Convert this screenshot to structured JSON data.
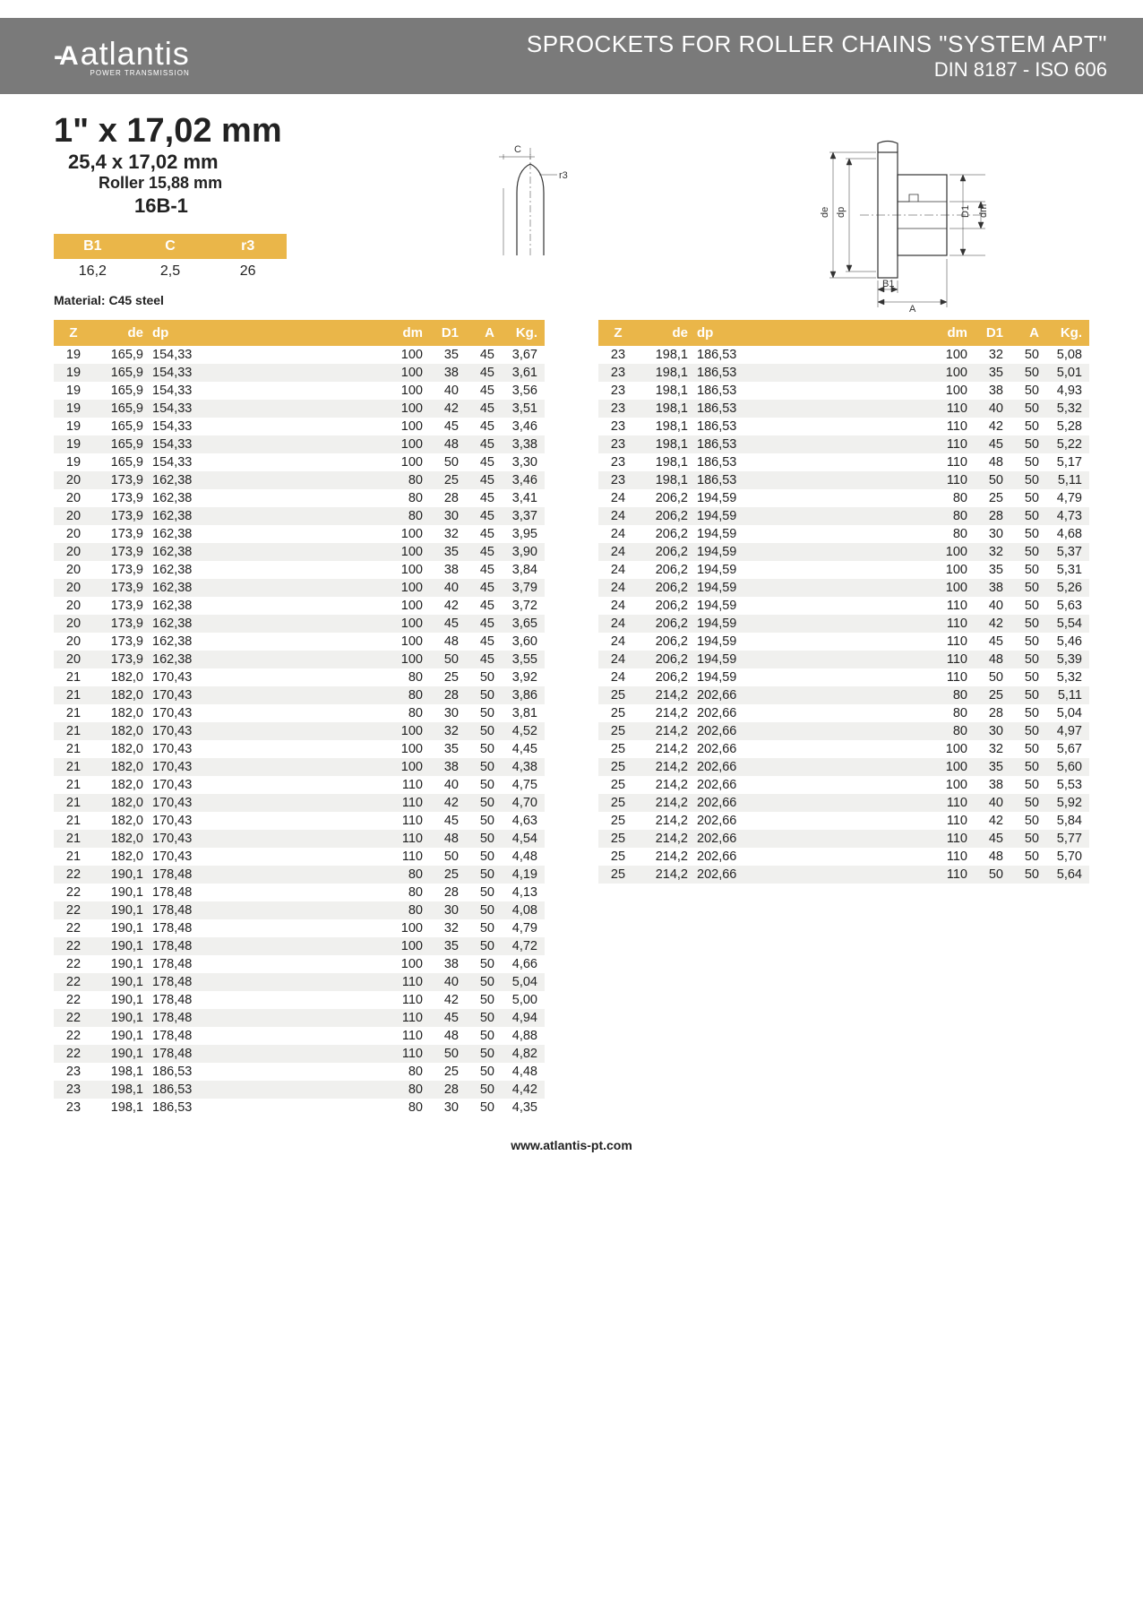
{
  "header": {
    "logo_text": "atlantis",
    "logo_sub": "POWER TRANSMISSION",
    "title": "SPROCKETS FOR ROLLER CHAINS \"SYSTEM APT\"",
    "subtitle": "DIN 8187 - ISO 606"
  },
  "spec": {
    "main": "1\" x 17,02 mm",
    "line2": "25,4 x 17,02 mm",
    "line3": "Roller 15,88 mm",
    "line4": "16B-1",
    "mini_headers": [
      "B1",
      "C",
      "r3"
    ],
    "mini_values": [
      "16,2",
      "2,5",
      "26"
    ],
    "material": "Material: C45 steel"
  },
  "diagrams": {
    "left_labels": {
      "C": "C",
      "r3": "r3"
    },
    "right_labels": {
      "de": "de",
      "dp": "dp",
      "D1": "D1",
      "dm": "dm",
      "B1": "B1",
      "A": "A"
    }
  },
  "table": {
    "headers": {
      "Z": "Z",
      "de": "de",
      "dp": "dp",
      "dm": "dm",
      "D1": "D1",
      "A": "A",
      "Kg": "Kg."
    },
    "left_rows": [
      [
        "19",
        "165,9",
        "154,33",
        "100",
        "35",
        "45",
        "3,67"
      ],
      [
        "19",
        "165,9",
        "154,33",
        "100",
        "38",
        "45",
        "3,61"
      ],
      [
        "19",
        "165,9",
        "154,33",
        "100",
        "40",
        "45",
        "3,56"
      ],
      [
        "19",
        "165,9",
        "154,33",
        "100",
        "42",
        "45",
        "3,51"
      ],
      [
        "19",
        "165,9",
        "154,33",
        "100",
        "45",
        "45",
        "3,46"
      ],
      [
        "19",
        "165,9",
        "154,33",
        "100",
        "48",
        "45",
        "3,38"
      ],
      [
        "19",
        "165,9",
        "154,33",
        "100",
        "50",
        "45",
        "3,30"
      ],
      [
        "20",
        "173,9",
        "162,38",
        "80",
        "25",
        "45",
        "3,46"
      ],
      [
        "20",
        "173,9",
        "162,38",
        "80",
        "28",
        "45",
        "3,41"
      ],
      [
        "20",
        "173,9",
        "162,38",
        "80",
        "30",
        "45",
        "3,37"
      ],
      [
        "20",
        "173,9",
        "162,38",
        "100",
        "32",
        "45",
        "3,95"
      ],
      [
        "20",
        "173,9",
        "162,38",
        "100",
        "35",
        "45",
        "3,90"
      ],
      [
        "20",
        "173,9",
        "162,38",
        "100",
        "38",
        "45",
        "3,84"
      ],
      [
        "20",
        "173,9",
        "162,38",
        "100",
        "40",
        "45",
        "3,79"
      ],
      [
        "20",
        "173,9",
        "162,38",
        "100",
        "42",
        "45",
        "3,72"
      ],
      [
        "20",
        "173,9",
        "162,38",
        "100",
        "45",
        "45",
        "3,65"
      ],
      [
        "20",
        "173,9",
        "162,38",
        "100",
        "48",
        "45",
        "3,60"
      ],
      [
        "20",
        "173,9",
        "162,38",
        "100",
        "50",
        "45",
        "3,55"
      ],
      [
        "21",
        "182,0",
        "170,43",
        "80",
        "25",
        "50",
        "3,92"
      ],
      [
        "21",
        "182,0",
        "170,43",
        "80",
        "28",
        "50",
        "3,86"
      ],
      [
        "21",
        "182,0",
        "170,43",
        "80",
        "30",
        "50",
        "3,81"
      ],
      [
        "21",
        "182,0",
        "170,43",
        "100",
        "32",
        "50",
        "4,52"
      ],
      [
        "21",
        "182,0",
        "170,43",
        "100",
        "35",
        "50",
        "4,45"
      ],
      [
        "21",
        "182,0",
        "170,43",
        "100",
        "38",
        "50",
        "4,38"
      ],
      [
        "21",
        "182,0",
        "170,43",
        "110",
        "40",
        "50",
        "4,75"
      ],
      [
        "21",
        "182,0",
        "170,43",
        "110",
        "42",
        "50",
        "4,70"
      ],
      [
        "21",
        "182,0",
        "170,43",
        "110",
        "45",
        "50",
        "4,63"
      ],
      [
        "21",
        "182,0",
        "170,43",
        "110",
        "48",
        "50",
        "4,54"
      ],
      [
        "21",
        "182,0",
        "170,43",
        "110",
        "50",
        "50",
        "4,48"
      ],
      [
        "22",
        "190,1",
        "178,48",
        "80",
        "25",
        "50",
        "4,19"
      ],
      [
        "22",
        "190,1",
        "178,48",
        "80",
        "28",
        "50",
        "4,13"
      ],
      [
        "22",
        "190,1",
        "178,48",
        "80",
        "30",
        "50",
        "4,08"
      ],
      [
        "22",
        "190,1",
        "178,48",
        "100",
        "32",
        "50",
        "4,79"
      ],
      [
        "22",
        "190,1",
        "178,48",
        "100",
        "35",
        "50",
        "4,72"
      ],
      [
        "22",
        "190,1",
        "178,48",
        "100",
        "38",
        "50",
        "4,66"
      ],
      [
        "22",
        "190,1",
        "178,48",
        "110",
        "40",
        "50",
        "5,04"
      ],
      [
        "22",
        "190,1",
        "178,48",
        "110",
        "42",
        "50",
        "5,00"
      ],
      [
        "22",
        "190,1",
        "178,48",
        "110",
        "45",
        "50",
        "4,94"
      ],
      [
        "22",
        "190,1",
        "178,48",
        "110",
        "48",
        "50",
        "4,88"
      ],
      [
        "22",
        "190,1",
        "178,48",
        "110",
        "50",
        "50",
        "4,82"
      ],
      [
        "23",
        "198,1",
        "186,53",
        "80",
        "25",
        "50",
        "4,48"
      ],
      [
        "23",
        "198,1",
        "186,53",
        "80",
        "28",
        "50",
        "4,42"
      ],
      [
        "23",
        "198,1",
        "186,53",
        "80",
        "30",
        "50",
        "4,35"
      ]
    ],
    "right_rows": [
      [
        "23",
        "198,1",
        "186,53",
        "100",
        "32",
        "50",
        "5,08"
      ],
      [
        "23",
        "198,1",
        "186,53",
        "100",
        "35",
        "50",
        "5,01"
      ],
      [
        "23",
        "198,1",
        "186,53",
        "100",
        "38",
        "50",
        "4,93"
      ],
      [
        "23",
        "198,1",
        "186,53",
        "110",
        "40",
        "50",
        "5,32"
      ],
      [
        "23",
        "198,1",
        "186,53",
        "110",
        "42",
        "50",
        "5,28"
      ],
      [
        "23",
        "198,1",
        "186,53",
        "110",
        "45",
        "50",
        "5,22"
      ],
      [
        "23",
        "198,1",
        "186,53",
        "110",
        "48",
        "50",
        "5,17"
      ],
      [
        "23",
        "198,1",
        "186,53",
        "110",
        "50",
        "50",
        "5,11"
      ],
      [
        "24",
        "206,2",
        "194,59",
        "80",
        "25",
        "50",
        "4,79"
      ],
      [
        "24",
        "206,2",
        "194,59",
        "80",
        "28",
        "50",
        "4,73"
      ],
      [
        "24",
        "206,2",
        "194,59",
        "80",
        "30",
        "50",
        "4,68"
      ],
      [
        "24",
        "206,2",
        "194,59",
        "100",
        "32",
        "50",
        "5,37"
      ],
      [
        "24",
        "206,2",
        "194,59",
        "100",
        "35",
        "50",
        "5,31"
      ],
      [
        "24",
        "206,2",
        "194,59",
        "100",
        "38",
        "50",
        "5,26"
      ],
      [
        "24",
        "206,2",
        "194,59",
        "110",
        "40",
        "50",
        "5,63"
      ],
      [
        "24",
        "206,2",
        "194,59",
        "110",
        "42",
        "50",
        "5,54"
      ],
      [
        "24",
        "206,2",
        "194,59",
        "110",
        "45",
        "50",
        "5,46"
      ],
      [
        "24",
        "206,2",
        "194,59",
        "110",
        "48",
        "50",
        "5,39"
      ],
      [
        "24",
        "206,2",
        "194,59",
        "110",
        "50",
        "50",
        "5,32"
      ],
      [
        "25",
        "214,2",
        "202,66",
        "80",
        "25",
        "50",
        "5,11"
      ],
      [
        "25",
        "214,2",
        "202,66",
        "80",
        "28",
        "50",
        "5,04"
      ],
      [
        "25",
        "214,2",
        "202,66",
        "80",
        "30",
        "50",
        "4,97"
      ],
      [
        "25",
        "214,2",
        "202,66",
        "100",
        "32",
        "50",
        "5,67"
      ],
      [
        "25",
        "214,2",
        "202,66",
        "100",
        "35",
        "50",
        "5,60"
      ],
      [
        "25",
        "214,2",
        "202,66",
        "100",
        "38",
        "50",
        "5,53"
      ],
      [
        "25",
        "214,2",
        "202,66",
        "110",
        "40",
        "50",
        "5,92"
      ],
      [
        "25",
        "214,2",
        "202,66",
        "110",
        "42",
        "50",
        "5,84"
      ],
      [
        "25",
        "214,2",
        "202,66",
        "110",
        "45",
        "50",
        "5,77"
      ],
      [
        "25",
        "214,2",
        "202,66",
        "110",
        "48",
        "50",
        "5,70"
      ],
      [
        "25",
        "214,2",
        "202,66",
        "110",
        "50",
        "50",
        "5,64"
      ]
    ]
  },
  "footer": "www.atlantis-pt.com",
  "colors": {
    "header_bg": "#7a7a7a",
    "accent": "#eab649",
    "row_stripe": "#f0f0ee",
    "text": "#222222"
  }
}
